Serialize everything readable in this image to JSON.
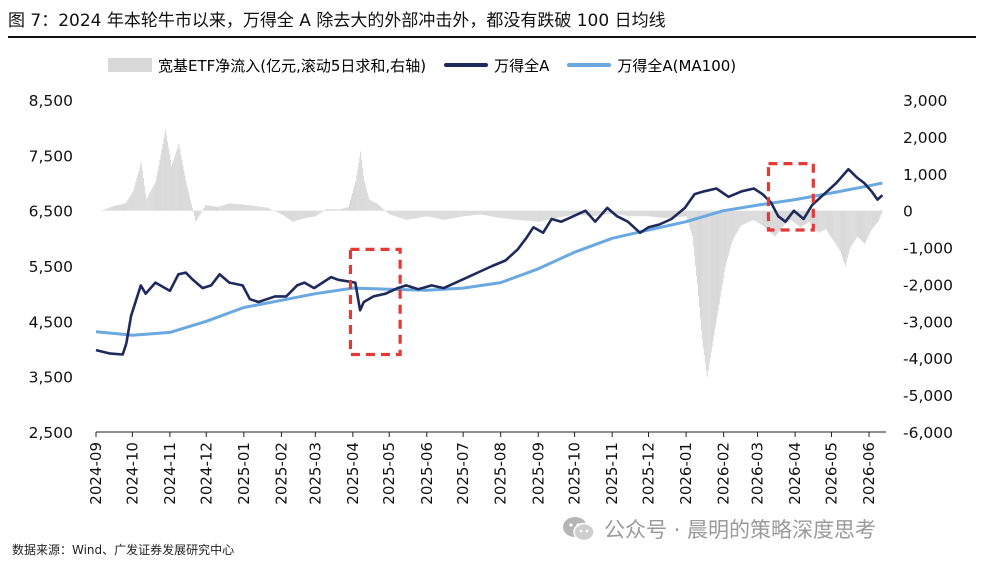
{
  "title": "图 7：2024 年本轮牛市以来，万得全 A 除去大的外部冲击外，都没有跌破 100 日均线",
  "source": "数据来源：Wind、广发证券发展研究中心",
  "watermark": "公众号 · 晨明的策略深度思考",
  "colors": {
    "bar": "#d9d9d9",
    "main": "#1f2a5c",
    "ma": "#6aa8e0",
    "highlight": "#e53935"
  },
  "chart_data": {
    "type": "line",
    "x_tick_labels": [
      "2024-09",
      "2024-10",
      "2024-11",
      "2024-12",
      "2025-01",
      "2025-02",
      "2025-03",
      "2025-04",
      "2025-05",
      "2025-06",
      "2025-07",
      "2025-08",
      "2025-09",
      "2025-10",
      "2025-11",
      "2025-12",
      "2026-01",
      "2026-02",
      "2026-03",
      "2026-04",
      "2026-05",
      "2026-06"
    ],
    "y_left": {
      "min": 2500,
      "max": 8500,
      "ticks": [
        2500,
        3500,
        4500,
        5500,
        6500,
        7500,
        8500
      ],
      "tick_labels": [
        "2,500",
        "3,500",
        "4,500",
        "5,500",
        "6,500",
        "7,500",
        "8,500"
      ]
    },
    "y_right": {
      "min": -6000,
      "max": 3000,
      "ticks": [
        -6000,
        -5000,
        -4000,
        -3000,
        -2000,
        -1000,
        0,
        1000,
        2000,
        3000
      ],
      "tick_labels": [
        "-6,000",
        "-5,000",
        "-4,000",
        "-3,000",
        "-2,000",
        "-1,000",
        "0",
        "1,000",
        "2,000",
        "3,000"
      ]
    },
    "series": [
      {
        "name": "宽基ETF净流入(亿元,滚动5日求和,右轴)",
        "type": "bar",
        "axis": "right",
        "points": [
          [
            "2024-09-05",
            0
          ],
          [
            "2024-09-15",
            120
          ],
          [
            "2024-09-25",
            200
          ],
          [
            "2024-10-01",
            500
          ],
          [
            "2024-10-08",
            1300
          ],
          [
            "2024-10-12",
            300
          ],
          [
            "2024-10-20",
            800
          ],
          [
            "2024-10-28",
            2200
          ],
          [
            "2024-11-02",
            1200
          ],
          [
            "2024-11-08",
            1800
          ],
          [
            "2024-11-15",
            600
          ],
          [
            "2024-11-22",
            -300
          ],
          [
            "2024-11-30",
            150
          ],
          [
            "2024-12-10",
            100
          ],
          [
            "2024-12-20",
            200
          ],
          [
            "2025-01-05",
            150
          ],
          [
            "2025-01-20",
            80
          ],
          [
            "2025-02-01",
            -100
          ],
          [
            "2025-02-10",
            -300
          ],
          [
            "2025-02-20",
            -200
          ],
          [
            "2025-03-01",
            -150
          ],
          [
            "2025-03-10",
            50
          ],
          [
            "2025-03-20",
            30
          ],
          [
            "2025-03-28",
            100
          ],
          [
            "2025-04-03",
            800
          ],
          [
            "2025-04-07",
            1600
          ],
          [
            "2025-04-10",
            800
          ],
          [
            "2025-04-14",
            300
          ],
          [
            "2025-04-20",
            200
          ],
          [
            "2025-05-01",
            -100
          ],
          [
            "2025-05-15",
            -250
          ],
          [
            "2025-06-01",
            -150
          ],
          [
            "2025-06-15",
            -250
          ],
          [
            "2025-07-01",
            -150
          ],
          [
            "2025-07-15",
            -100
          ],
          [
            "2025-08-01",
            -200
          ],
          [
            "2025-08-15",
            -250
          ],
          [
            "2025-09-01",
            -300
          ],
          [
            "2025-09-15",
            -200
          ],
          [
            "2025-10-01",
            -100
          ],
          [
            "2025-10-15",
            -150
          ],
          [
            "2025-11-01",
            -80
          ],
          [
            "2025-11-15",
            -150
          ],
          [
            "2025-12-01",
            -150
          ],
          [
            "2025-12-15",
            -200
          ],
          [
            "2026-01-01",
            -150
          ],
          [
            "2026-01-06",
            -700
          ],
          [
            "2026-01-10",
            -2000
          ],
          [
            "2026-01-14",
            -3500
          ],
          [
            "2026-01-18",
            -4500
          ],
          [
            "2026-01-22",
            -3700
          ],
          [
            "2026-01-28",
            -2500
          ],
          [
            "2026-02-02",
            -1500
          ],
          [
            "2026-02-08",
            -800
          ],
          [
            "2026-02-15",
            -400
          ],
          [
            "2026-02-25",
            -250
          ],
          [
            "2026-03-05",
            -400
          ],
          [
            "2026-03-15",
            -700
          ],
          [
            "2026-03-22",
            -400
          ],
          [
            "2026-03-28",
            -250
          ],
          [
            "2026-04-05",
            -450
          ],
          [
            "2026-04-12",
            -300
          ],
          [
            "2026-04-20",
            -600
          ],
          [
            "2026-04-26",
            -500
          ],
          [
            "2026-05-02",
            -800
          ],
          [
            "2026-05-08",
            -1100
          ],
          [
            "2026-05-12",
            -1500
          ],
          [
            "2026-05-16",
            -1000
          ],
          [
            "2026-05-22",
            -700
          ],
          [
            "2026-05-28",
            -900
          ],
          [
            "2026-06-03",
            -500
          ],
          [
            "2026-06-08",
            -300
          ],
          [
            "2026-06-12",
            0
          ]
        ]
      },
      {
        "name": "万得全A",
        "type": "line",
        "axis": "left",
        "points": [
          [
            "2024-09-01",
            3980
          ],
          [
            "2024-09-12",
            3920
          ],
          [
            "2024-09-23",
            3900
          ],
          [
            "2024-09-26",
            4100
          ],
          [
            "2024-09-30",
            4600
          ],
          [
            "2024-10-08",
            5150
          ],
          [
            "2024-10-12",
            5000
          ],
          [
            "2024-10-20",
            5200
          ],
          [
            "2024-10-28",
            5100
          ],
          [
            "2024-11-01",
            5050
          ],
          [
            "2024-11-08",
            5350
          ],
          [
            "2024-11-14",
            5380
          ],
          [
            "2024-11-20",
            5250
          ],
          [
            "2024-11-28",
            5100
          ],
          [
            "2024-12-05",
            5150
          ],
          [
            "2024-12-12",
            5350
          ],
          [
            "2024-12-20",
            5200
          ],
          [
            "2024-12-31",
            5150
          ],
          [
            "2025-01-06",
            4900
          ],
          [
            "2025-01-13",
            4850
          ],
          [
            "2025-01-20",
            4900
          ],
          [
            "2025-01-27",
            4950
          ],
          [
            "2025-02-05",
            4950
          ],
          [
            "2025-02-14",
            5150
          ],
          [
            "2025-02-20",
            5200
          ],
          [
            "2025-02-28",
            5100
          ],
          [
            "2025-03-07",
            5200
          ],
          [
            "2025-03-14",
            5300
          ],
          [
            "2025-03-20",
            5250
          ],
          [
            "2025-04-03",
            5200
          ],
          [
            "2025-04-07",
            4700
          ],
          [
            "2025-04-10",
            4850
          ],
          [
            "2025-04-18",
            4950
          ],
          [
            "2025-04-28",
            5000
          ],
          [
            "2025-05-08",
            5100
          ],
          [
            "2025-05-15",
            5150
          ],
          [
            "2025-05-25",
            5080
          ],
          [
            "2025-06-05",
            5150
          ],
          [
            "2025-06-15",
            5100
          ],
          [
            "2025-06-25",
            5200
          ],
          [
            "2025-07-05",
            5300
          ],
          [
            "2025-07-15",
            5400
          ],
          [
            "2025-07-25",
            5500
          ],
          [
            "2025-08-05",
            5600
          ],
          [
            "2025-08-15",
            5800
          ],
          [
            "2025-08-22",
            6000
          ],
          [
            "2025-08-28",
            6200
          ],
          [
            "2025-09-05",
            6100
          ],
          [
            "2025-09-12",
            6350
          ],
          [
            "2025-09-20",
            6300
          ],
          [
            "2025-09-30",
            6400
          ],
          [
            "2025-10-10",
            6500
          ],
          [
            "2025-10-18",
            6300
          ],
          [
            "2025-10-28",
            6550
          ],
          [
            "2025-11-05",
            6400
          ],
          [
            "2025-11-14",
            6300
          ],
          [
            "2025-11-24",
            6100
          ],
          [
            "2025-12-01",
            6200
          ],
          [
            "2025-12-10",
            6250
          ],
          [
            "2025-12-20",
            6350
          ],
          [
            "2025-12-31",
            6550
          ],
          [
            "2026-01-08",
            6800
          ],
          [
            "2026-01-16",
            6850
          ],
          [
            "2026-01-26",
            6900
          ],
          [
            "2026-02-05",
            6750
          ],
          [
            "2026-02-16",
            6850
          ],
          [
            "2026-02-26",
            6900
          ],
          [
            "2026-03-05",
            6800
          ],
          [
            "2026-03-12",
            6650
          ],
          [
            "2026-03-18",
            6400
          ],
          [
            "2026-03-24",
            6300
          ],
          [
            "2026-03-31",
            6500
          ],
          [
            "2026-04-08",
            6350
          ],
          [
            "2026-04-15",
            6600
          ],
          [
            "2026-04-25",
            6800
          ],
          [
            "2026-05-05",
            7000
          ],
          [
            "2026-05-15",
            7250
          ],
          [
            "2026-05-22",
            7100
          ],
          [
            "2026-05-28",
            7000
          ],
          [
            "2026-06-03",
            6850
          ],
          [
            "2026-06-08",
            6700
          ],
          [
            "2026-06-12",
            6780
          ]
        ]
      },
      {
        "name": "万得全A(MA100)",
        "type": "line",
        "axis": "left",
        "points": [
          [
            "2024-09-01",
            4310
          ],
          [
            "2024-10-01",
            4250
          ],
          [
            "2024-11-01",
            4300
          ],
          [
            "2024-12-01",
            4500
          ],
          [
            "2025-01-01",
            4750
          ],
          [
            "2025-02-01",
            4880
          ],
          [
            "2025-03-01",
            5000
          ],
          [
            "2025-04-01",
            5100
          ],
          [
            "2025-05-01",
            5080
          ],
          [
            "2025-06-01",
            5060
          ],
          [
            "2025-07-01",
            5100
          ],
          [
            "2025-08-01",
            5200
          ],
          [
            "2025-09-01",
            5450
          ],
          [
            "2025-10-01",
            5750
          ],
          [
            "2025-11-01",
            6000
          ],
          [
            "2025-12-01",
            6150
          ],
          [
            "2026-01-01",
            6300
          ],
          [
            "2026-02-01",
            6500
          ],
          [
            "2026-03-01",
            6600
          ],
          [
            "2026-04-01",
            6700
          ],
          [
            "2026-05-01",
            6820
          ],
          [
            "2026-06-01",
            6950
          ],
          [
            "2026-06-12",
            7000
          ]
        ]
      }
    ],
    "annotations": [
      {
        "type": "dashed-box",
        "x_start": "2025-03-30",
        "x_end": "2025-05-10",
        "y_low": 3900,
        "y_high": 5800
      },
      {
        "type": "dashed-box",
        "x_start": "2026-03-10",
        "x_end": "2026-04-16",
        "y_low": 6150,
        "y_high": 7350
      }
    ]
  }
}
